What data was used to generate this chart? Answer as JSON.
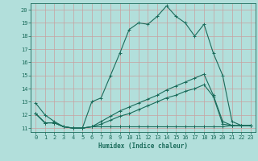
{
  "background_color": "#b2dfdb",
  "grid_color": "#d0eeea",
  "line_color": "#1a6b5a",
  "xlabel": "Humidex (Indice chaleur)",
  "xlim": [
    -0.5,
    23.5
  ],
  "ylim": [
    10.7,
    20.5
  ],
  "yticks": [
    11,
    12,
    13,
    14,
    15,
    16,
    17,
    18,
    19,
    20
  ],
  "xticks": [
    0,
    1,
    2,
    3,
    4,
    5,
    6,
    7,
    8,
    9,
    10,
    11,
    12,
    13,
    14,
    15,
    16,
    17,
    18,
    19,
    20,
    21,
    22,
    23
  ],
  "line1_x": [
    0,
    1,
    2,
    3,
    4,
    5,
    6,
    7,
    8,
    9,
    10,
    11,
    12,
    13,
    14,
    15,
    16,
    17,
    18,
    19,
    20,
    21,
    22,
    23
  ],
  "line1_y": [
    12.9,
    12.0,
    11.5,
    11.1,
    11.0,
    11.0,
    13.0,
    13.3,
    15.0,
    16.7,
    18.5,
    19.0,
    18.9,
    19.5,
    20.3,
    19.5,
    19.0,
    18.0,
    18.9,
    16.7,
    15.0,
    11.5,
    11.2,
    11.2
  ],
  "line2_x": [
    0,
    1,
    2,
    3,
    4,
    5,
    6,
    7,
    8,
    9,
    10,
    11,
    12,
    13,
    14,
    15,
    16,
    17,
    18,
    19,
    20,
    21,
    22,
    23
  ],
  "line2_y": [
    12.1,
    11.4,
    11.4,
    11.1,
    11.0,
    11.0,
    11.1,
    11.5,
    11.9,
    12.3,
    12.6,
    12.9,
    13.2,
    13.5,
    13.9,
    14.2,
    14.5,
    14.8,
    15.1,
    13.5,
    11.5,
    11.2,
    11.2,
    11.2
  ],
  "line3_x": [
    0,
    1,
    2,
    3,
    4,
    5,
    6,
    7,
    8,
    9,
    10,
    11,
    12,
    13,
    14,
    15,
    16,
    17,
    18,
    19,
    20,
    21,
    22,
    23
  ],
  "line3_y": [
    12.1,
    11.4,
    11.4,
    11.1,
    11.0,
    11.0,
    11.1,
    11.3,
    11.6,
    11.9,
    12.1,
    12.4,
    12.7,
    13.0,
    13.3,
    13.5,
    13.8,
    14.0,
    14.3,
    13.4,
    11.3,
    11.2,
    11.2,
    11.2
  ],
  "line4_x": [
    0,
    1,
    2,
    3,
    4,
    5,
    6,
    7,
    8,
    9,
    10,
    11,
    12,
    13,
    14,
    15,
    16,
    17,
    18,
    19,
    20,
    21,
    22,
    23
  ],
  "line4_y": [
    12.1,
    11.4,
    11.4,
    11.1,
    11.0,
    11.0,
    11.1,
    11.1,
    11.1,
    11.1,
    11.1,
    11.1,
    11.1,
    11.1,
    11.1,
    11.1,
    11.1,
    11.1,
    11.1,
    11.1,
    11.1,
    11.2,
    11.2,
    11.2
  ]
}
